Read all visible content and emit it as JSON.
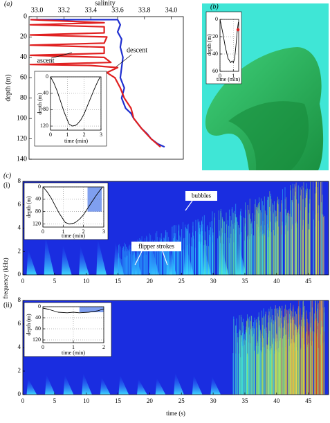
{
  "chart_data": [
    {
      "type": "line",
      "panel_label": "(a)",
      "x_label": "salinity",
      "y_label": "depth (m)",
      "xlim": [
        32.94,
        34.09
      ],
      "xticks": [
        {
          "value": 33,
          "label": "33.0"
        },
        33.2,
        33.4,
        33.6,
        33.8,
        {
          "value": 34,
          "label": "34.0"
        }
      ],
      "ylim": [
        0,
        140
      ],
      "yticks": [
        0,
        20,
        40,
        60,
        80,
        100,
        120,
        140
      ],
      "y_inverted": true,
      "x_axis_position": "top",
      "grid": false,
      "series": [
        {
          "name": "descent",
          "color": "#1f2fd0",
          "x": [
            32.95,
            33.6,
            33.62,
            33.6,
            33.63,
            33.62,
            33.64,
            33.63,
            33.62,
            33.65,
            33.63,
            33.66,
            33.7,
            33.72,
            33.75,
            33.78,
            33.82,
            33.85,
            33.9,
            33.95
          ],
          "values": [
            3,
            3,
            8,
            15,
            22,
            30,
            40,
            50,
            60,
            70,
            80,
            90,
            95,
            100,
            105,
            110,
            115,
            120,
            125,
            128
          ]
        },
        {
          "name": "ascent",
          "color": "#e02020",
          "x": [
            33.92,
            33.85,
            33.78,
            33.72,
            33.7,
            33.65,
            33.62,
            33.58,
            33.52,
            33.6,
            33.4,
            32.95,
            33.55,
            33.5,
            32.95,
            33.5,
            33.5,
            32.95,
            33.5,
            33.52,
            32.95,
            33.5,
            33.5,
            32.95,
            33.5,
            32.95
          ],
          "values": [
            128,
            120,
            110,
            100,
            90,
            80,
            70,
            60,
            55,
            50,
            48,
            47,
            45,
            40,
            38,
            36,
            30,
            28,
            26,
            20,
            18,
            16,
            10,
            8,
            6,
            3
          ]
        }
      ]
    },
    {
      "type": "line",
      "x_label": "time (min)",
      "y_label": "depth (m)",
      "xlim": [
        0,
        3
      ],
      "xticks": [
        0,
        1,
        2,
        3
      ],
      "ylim": [
        0,
        130
      ],
      "yticks": [
        0,
        40,
        80,
        120
      ],
      "y_inverted": true,
      "grid": true,
      "series": [
        {
          "color": "#000000",
          "x": [
            0,
            0.2,
            0.4,
            0.6,
            0.8,
            1.0,
            1.1,
            1.3,
            1.5,
            1.6,
            1.8,
            2.0,
            2.2,
            2.4,
            2.6,
            2.8,
            2.95
          ],
          "values": [
            0,
            15,
            35,
            60,
            85,
            105,
            115,
            120,
            118,
            115,
            105,
            90,
            70,
            50,
            30,
            12,
            0
          ]
        }
      ]
    },
    {
      "type": "line",
      "panel_label": "(b)",
      "x_label": "time (min)",
      "y_label": "depth (m)",
      "xlim": [
        0,
        1.4
      ],
      "xticks": [
        0,
        1
      ],
      "ylim": [
        0,
        60
      ],
      "yticks": [
        0,
        20,
        40,
        60
      ],
      "y_inverted": true,
      "grid": true,
      "series": [
        {
          "color": "#000000",
          "x": [
            0,
            0.2,
            0.4,
            0.6,
            0.8,
            0.9,
            1.0,
            1.1,
            1.2,
            1.3,
            1.38
          ],
          "values": [
            0,
            15,
            32,
            45,
            50,
            48,
            50,
            45,
            30,
            12,
            3
          ]
        }
      ],
      "marker": {
        "x": 1.35,
        "y": 12,
        "color": "#e02020"
      }
    },
    {
      "type": "spectrogram",
      "panel_label": "(c)",
      "sub_label": "(i)",
      "y_label": "frequency (kHz)",
      "xlim": [
        0,
        48.2
      ],
      "xticks": [
        0,
        5,
        10,
        15,
        20,
        25,
        30,
        35,
        40,
        45
      ],
      "ylim": [
        0,
        8
      ],
      "yticks": [
        0,
        2,
        4,
        6,
        8
      ],
      "annotations": [
        "bubbles",
        "flipper strokes"
      ]
    },
    {
      "type": "line",
      "x_label": "time (min)",
      "y_label": "depth (m)",
      "xlim": [
        0,
        3
      ],
      "xticks": [
        0,
        1,
        2,
        3
      ],
      "ylim": [
        0,
        130
      ],
      "yticks": [
        0,
        40,
        80,
        120
      ],
      "y_inverted": true,
      "grid": true,
      "highlight": {
        "x": [
          2.2,
          2.9
        ],
        "y": [
          0,
          80
        ],
        "color": "#7f9fef"
      },
      "series": [
        {
          "color": "#000000",
          "x": [
            0,
            0.2,
            0.4,
            0.6,
            0.8,
            1.0,
            1.1,
            1.3,
            1.5,
            1.6,
            1.8,
            2.0,
            2.2,
            2.4,
            2.6,
            2.8,
            2.95
          ],
          "values": [
            0,
            15,
            35,
            60,
            85,
            105,
            115,
            120,
            118,
            115,
            105,
            90,
            70,
            50,
            30,
            12,
            0
          ]
        }
      ]
    },
    {
      "type": "spectrogram",
      "sub_label": "(ii)",
      "x_label": "time (s)",
      "xlim": [
        0,
        48.2
      ],
      "xticks": [
        0,
        5,
        10,
        15,
        20,
        25,
        30,
        35,
        40,
        45
      ],
      "ylim": [
        0,
        8
      ],
      "yticks": [
        0,
        2,
        4,
        6,
        8
      ]
    },
    {
      "type": "line",
      "x_label": "time (min)",
      "y_label": "depth (m)",
      "xlim": [
        0,
        2
      ],
      "xticks": [
        0,
        1,
        2
      ],
      "ylim": [
        0,
        130
      ],
      "yticks": [
        0,
        40,
        80,
        120
      ],
      "y_inverted": true,
      "grid": true,
      "highlight": {
        "x": [
          1.2,
          2
        ],
        "y": [
          0,
          20
        ],
        "color": "#7f9fef"
      },
      "series": [
        {
          "color": "#000000",
          "x": [
            0,
            0.2,
            0.5,
            0.8,
            1.0,
            1.2,
            1.5,
            1.8,
            2.0
          ],
          "values": [
            5,
            10,
            20,
            22,
            20,
            22,
            20,
            15,
            8
          ]
        }
      ]
    }
  ]
}
